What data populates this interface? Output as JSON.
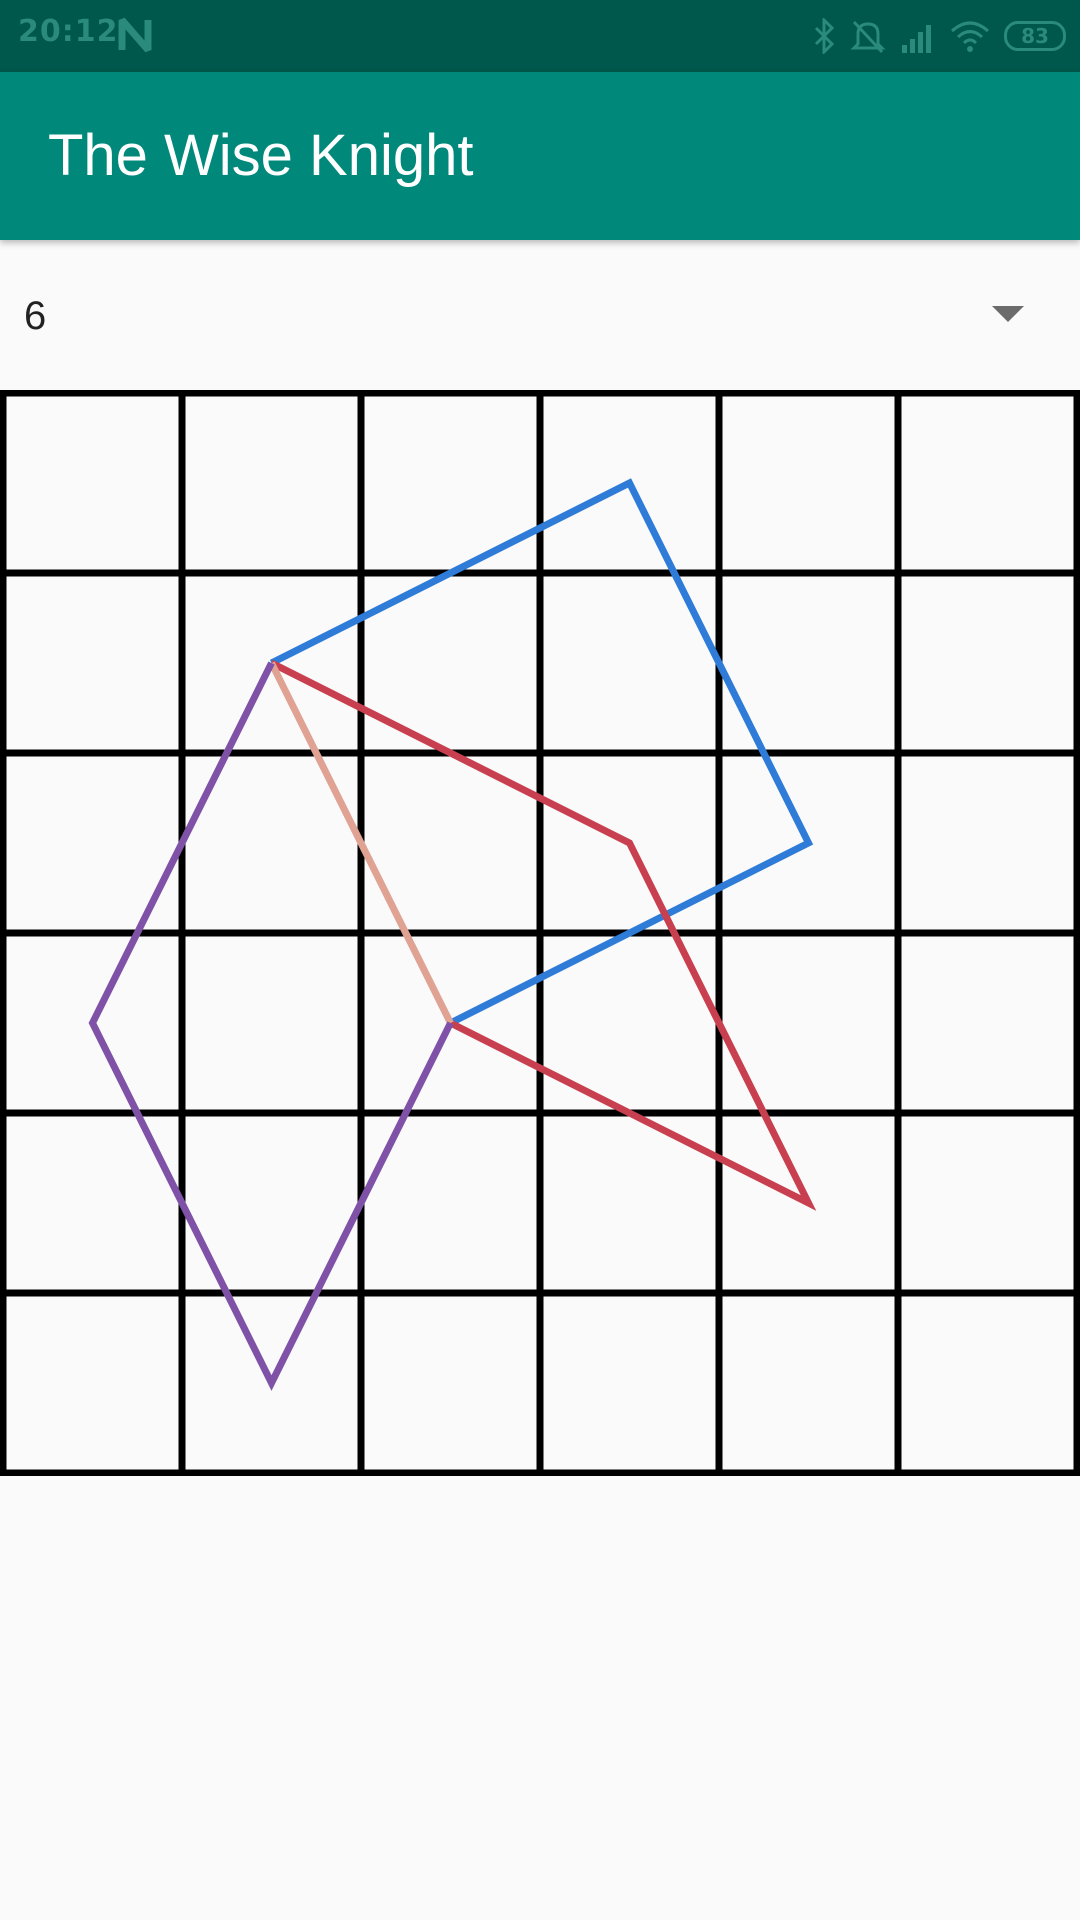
{
  "status_bar": {
    "time": "20:12",
    "battery": "83",
    "icons": [
      "notification-n-icon",
      "bluetooth-icon",
      "mute-icon",
      "signal-icon",
      "wifi-icon",
      "battery-icon"
    ]
  },
  "app_bar": {
    "title": "The Wise Knight"
  },
  "spinner": {
    "selected_value": "6",
    "icon": "dropdown-arrow-icon"
  },
  "board": {
    "size": 6,
    "colors": {
      "grid": "#000000",
      "blue": "#2f7bd8",
      "red": "#c8404f",
      "salmon": "#dfa293",
      "purple": "#7f52a8"
    },
    "paths": [
      {
        "color": "blue",
        "cells": [
          [
            1.5,
            1.5
          ],
          [
            3.5,
            0.5
          ],
          [
            4.5,
            2.5
          ],
          [
            2.5,
            3.5
          ]
        ]
      },
      {
        "color": "red",
        "cells": [
          [
            1.5,
            1.5
          ],
          [
            3.5,
            2.5
          ],
          [
            4.5,
            4.5
          ],
          [
            2.5,
            3.5
          ]
        ]
      },
      {
        "color": "salmon",
        "cells": [
          [
            1.5,
            1.5
          ],
          [
            2.5,
            3.5
          ]
        ]
      },
      {
        "color": "purple",
        "cells": [
          [
            1.5,
            1.5
          ],
          [
            0.5,
            3.5
          ],
          [
            1.5,
            5.5
          ],
          [
            2.5,
            3.5
          ]
        ]
      }
    ]
  }
}
